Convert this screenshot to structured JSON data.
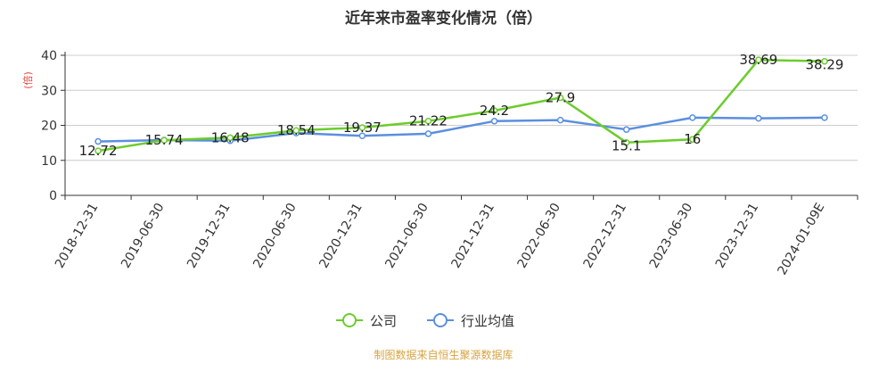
{
  "chart_data": {
    "type": "line",
    "title": "近年来市盈率变化情况（倍）",
    "ylabel": "(倍)",
    "xlabel": "",
    "ylim": [
      0,
      40
    ],
    "yticks": [
      0,
      10,
      20,
      30,
      40
    ],
    "grid": true,
    "legend_position": "bottom-center",
    "categories": [
      "2018-12-31",
      "2019-06-30",
      "2019-12-31",
      "2020-06-30",
      "2020-12-31",
      "2021-06-30",
      "2021-12-31",
      "2022-06-30",
      "2022-12-31",
      "2023-06-30",
      "2023-12-31",
      "2024-01-09E"
    ],
    "series": [
      {
        "name": "公司",
        "color": "#6ccc2c",
        "values": [
          12.72,
          15.74,
          16.48,
          18.54,
          19.37,
          21.22,
          24.2,
          27.9,
          15.1,
          16,
          38.69,
          38.29
        ],
        "labels": [
          "12.72",
          "15.74",
          "16.48",
          "18.54",
          "19.37",
          "21.22",
          "24.2",
          "27.9",
          "15.1",
          "16",
          "38.69",
          "38.29"
        ]
      },
      {
        "name": "行业均值",
        "color": "#5b8fdf",
        "values": [
          15.4,
          15.8,
          15.6,
          17.8,
          17.0,
          17.6,
          21.2,
          21.5,
          18.8,
          22.2,
          22.0,
          22.2
        ]
      }
    ]
  },
  "source": {
    "text": "制图数据来自恒生聚源数据库",
    "color": "#d9a441"
  }
}
